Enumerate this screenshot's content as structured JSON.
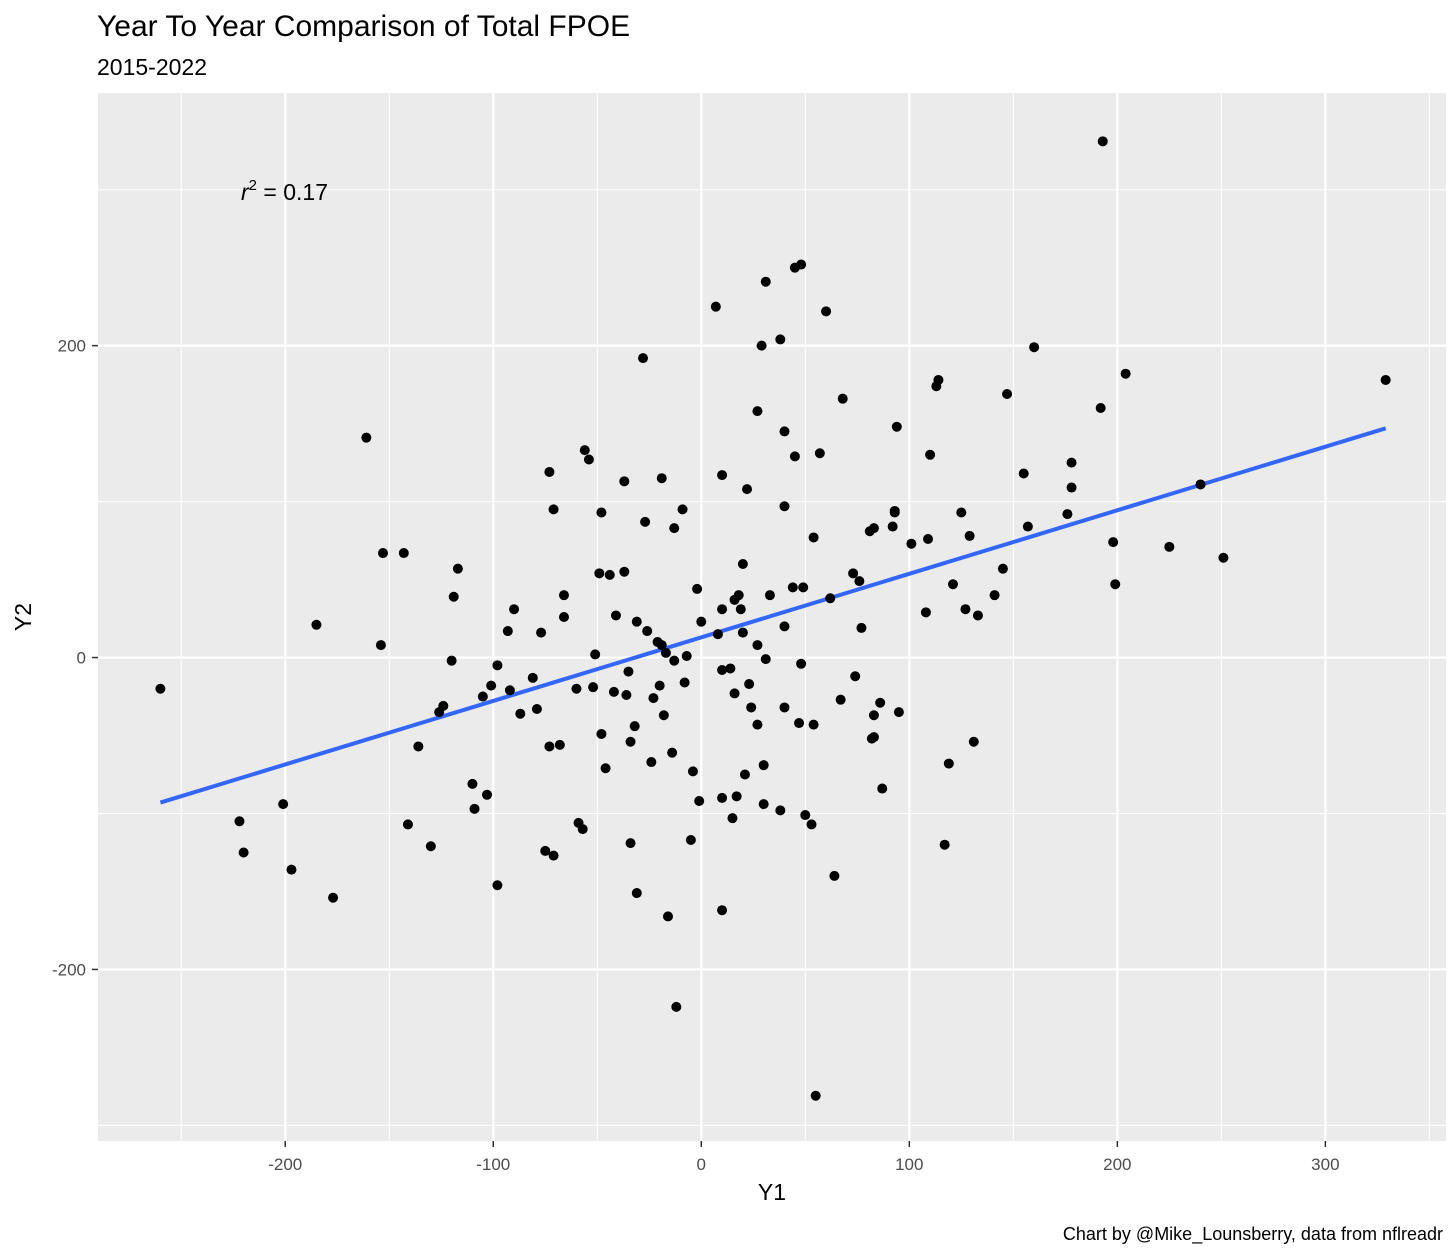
{
  "chart_data": {
    "type": "scatter",
    "title": "Year To Year Comparison of Total FPOE",
    "subtitle": "2015-2022",
    "xlabel": "Y1",
    "ylabel": "Y2",
    "caption": "Chart by @Mike_Lounsberry, data from nflreadr",
    "annotation": {
      "r_symbol": "r",
      "superscript": "2",
      "text": " = 0.17"
    },
    "xlim": [
      -290,
      358
    ],
    "ylim": [
      -310,
      362
    ],
    "x_ticks": [
      -200,
      -100,
      0,
      100,
      200,
      300
    ],
    "x_tick_labels": [
      "-200",
      "-100",
      "0",
      "100",
      "200",
      "300"
    ],
    "y_ticks": [
      -200,
      0,
      200
    ],
    "y_tick_labels": [
      "-200",
      "0",
      "200"
    ],
    "grid": true,
    "point_color": "#000000",
    "panel_color": "#ebebeb",
    "fit_line": {
      "color": "#3366ff",
      "x": [
        -260,
        329
      ],
      "y": [
        -93,
        147
      ]
    },
    "points": [
      [
        -260,
        -20
      ],
      [
        -222,
        -105
      ],
      [
        -220,
        -125
      ],
      [
        -201,
        -94
      ],
      [
        -197,
        -136
      ],
      [
        -185,
        21
      ],
      [
        -177,
        -154
      ],
      [
        -161,
        141
      ],
      [
        -154,
        8
      ],
      [
        -153,
        67
      ],
      [
        -143,
        67
      ],
      [
        -141,
        -107
      ],
      [
        -136,
        -57
      ],
      [
        -130,
        -121
      ],
      [
        -126,
        -35
      ],
      [
        -124,
        -31
      ],
      [
        -120,
        -2
      ],
      [
        -119,
        39
      ],
      [
        -117,
        57
      ],
      [
        -110,
        -81
      ],
      [
        -109,
        -97
      ],
      [
        -105,
        -25
      ],
      [
        -103,
        -88
      ],
      [
        -101,
        -18
      ],
      [
        -98,
        -5
      ],
      [
        -98,
        -146
      ],
      [
        -93,
        17
      ],
      [
        -92,
        -21
      ],
      [
        -90,
        31
      ],
      [
        -87,
        -36
      ],
      [
        -81,
        -13
      ],
      [
        -79,
        -33
      ],
      [
        -77,
        16
      ],
      [
        -75,
        -124
      ],
      [
        -73,
        119
      ],
      [
        -73,
        -57
      ],
      [
        -71,
        95
      ],
      [
        -71,
        -127
      ],
      [
        -68,
        -56
      ],
      [
        -66,
        40
      ],
      [
        -66,
        26
      ],
      [
        -60,
        -20
      ],
      [
        -59,
        -106
      ],
      [
        -57,
        -110
      ],
      [
        -56,
        133
      ],
      [
        -54,
        127
      ],
      [
        -52,
        -19
      ],
      [
        -51,
        2
      ],
      [
        -49,
        54
      ],
      [
        -48,
        -49
      ],
      [
        -48,
        93
      ],
      [
        -46,
        -71
      ],
      [
        -44,
        53
      ],
      [
        -42,
        -22
      ],
      [
        -41,
        27
      ],
      [
        -37,
        113
      ],
      [
        -37,
        55
      ],
      [
        -36,
        -24
      ],
      [
        -35,
        -9
      ],
      [
        -34,
        -54
      ],
      [
        -34,
        -119
      ],
      [
        -32,
        -44
      ],
      [
        -31,
        23
      ],
      [
        -31,
        -151
      ],
      [
        -28,
        192
      ],
      [
        -27,
        87
      ],
      [
        -26,
        17
      ],
      [
        -24,
        -67
      ],
      [
        -23,
        -26
      ],
      [
        -21,
        10
      ],
      [
        -20,
        -18
      ],
      [
        -19,
        115
      ],
      [
        -19,
        8
      ],
      [
        -18,
        -37
      ],
      [
        -17,
        3
      ],
      [
        -16,
        -166
      ],
      [
        -14,
        -61
      ],
      [
        -13,
        83
      ],
      [
        -13,
        -2
      ],
      [
        -12,
        -224
      ],
      [
        -9,
        95
      ],
      [
        -8,
        -16
      ],
      [
        -7,
        1
      ],
      [
        -5,
        -117
      ],
      [
        -4,
        -73
      ],
      [
        -2,
        44
      ],
      [
        -1,
        -92
      ],
      [
        0,
        23
      ],
      [
        7,
        225
      ],
      [
        8,
        15
      ],
      [
        10,
        -90
      ],
      [
        10,
        117
      ],
      [
        10,
        -162
      ],
      [
        10,
        -8
      ],
      [
        10,
        31
      ],
      [
        14,
        -7
      ],
      [
        15,
        -103
      ],
      [
        16,
        -23
      ],
      [
        16,
        37
      ],
      [
        17,
        -89
      ],
      [
        18,
        40
      ],
      [
        19,
        31
      ],
      [
        20,
        16
      ],
      [
        20,
        60
      ],
      [
        21,
        -75
      ],
      [
        22,
        108
      ],
      [
        23,
        -17
      ],
      [
        24,
        -32
      ],
      [
        27,
        158
      ],
      [
        27,
        -43
      ],
      [
        27,
        8
      ],
      [
        29,
        200
      ],
      [
        30,
        -94
      ],
      [
        30,
        -69
      ],
      [
        31,
        -1
      ],
      [
        31,
        241
      ],
      [
        33,
        40
      ],
      [
        38,
        204
      ],
      [
        38,
        -98
      ],
      [
        40,
        145
      ],
      [
        40,
        97
      ],
      [
        40,
        20
      ],
      [
        40,
        -32
      ],
      [
        44,
        45
      ],
      [
        45,
        129
      ],
      [
        45,
        250
      ],
      [
        47,
        -42
      ],
      [
        48,
        252
      ],
      [
        48,
        -4
      ],
      [
        49,
        45
      ],
      [
        50,
        -101
      ],
      [
        53,
        -107
      ],
      [
        54,
        77
      ],
      [
        54,
        -43
      ],
      [
        55,
        -281
      ],
      [
        57,
        131
      ],
      [
        60,
        222
      ],
      [
        62,
        38
      ],
      [
        64,
        -140
      ],
      [
        67,
        -27
      ],
      [
        68,
        166
      ],
      [
        73,
        54
      ],
      [
        74,
        -12
      ],
      [
        76,
        49
      ],
      [
        77,
        19
      ],
      [
        81,
        81
      ],
      [
        82,
        -52
      ],
      [
        83,
        -51
      ],
      [
        83,
        -37
      ],
      [
        83,
        83
      ],
      [
        86,
        -29
      ],
      [
        87,
        -84
      ],
      [
        92,
        84
      ],
      [
        93,
        93
      ],
      [
        93,
        94
      ],
      [
        94,
        148
      ],
      [
        95,
        -35
      ],
      [
        101,
        73
      ],
      [
        108,
        29
      ],
      [
        109,
        76
      ],
      [
        110,
        130
      ],
      [
        113,
        174
      ],
      [
        114,
        178
      ],
      [
        117,
        -120
      ],
      [
        119,
        -68
      ],
      [
        121,
        47
      ],
      [
        125,
        93
      ],
      [
        127,
        31
      ],
      [
        129,
        78
      ],
      [
        131,
        -54
      ],
      [
        133,
        27
      ],
      [
        141,
        40
      ],
      [
        145,
        57
      ],
      [
        147,
        169
      ],
      [
        155,
        118
      ],
      [
        157,
        84
      ],
      [
        160,
        199
      ],
      [
        176,
        92
      ],
      [
        178,
        109
      ],
      [
        178,
        125
      ],
      [
        192,
        160
      ],
      [
        193,
        331
      ],
      [
        198,
        74
      ],
      [
        199,
        47
      ],
      [
        204,
        182
      ],
      [
        225,
        71
      ],
      [
        240,
        111
      ],
      [
        251,
        64
      ],
      [
        329,
        178
      ]
    ]
  }
}
